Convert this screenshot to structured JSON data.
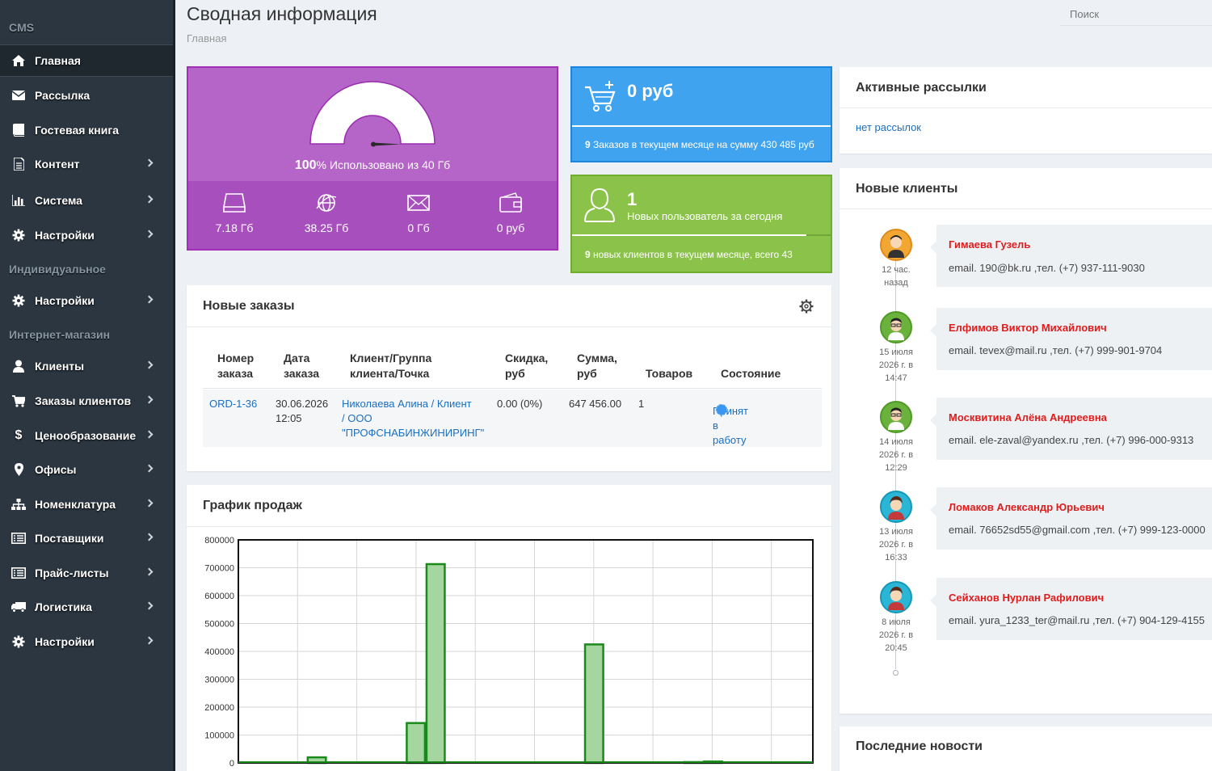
{
  "sidebar": {
    "sections": [
      "CMS",
      "Индивидуальное",
      "Интернет-магазин"
    ],
    "items": [
      {
        "label": "Главная",
        "icon": "home-icon",
        "active": true
      },
      {
        "label": "Рассылка",
        "icon": "envelope-icon"
      },
      {
        "label": "Гостевая книга",
        "icon": "book-icon"
      },
      {
        "label": "Контент",
        "icon": "document-icon"
      },
      {
        "label": "Система",
        "icon": "bar-chart-icon"
      },
      {
        "label": "Настройки",
        "icon": "gear-icon"
      },
      {
        "label": "Настройки",
        "icon": "gear-icon"
      },
      {
        "label": "Клиенты",
        "icon": "user-icon"
      },
      {
        "label": "Заказы клиентов",
        "icon": "cart-icon"
      },
      {
        "label": "Ценообразование",
        "icon": "dollar-icon"
      },
      {
        "label": "Офисы",
        "icon": "map-marker-icon"
      },
      {
        "label": "Номенклатура",
        "icon": "sitemap-icon"
      },
      {
        "label": "Поставщики",
        "icon": "list-icon"
      },
      {
        "label": "Прайс-листы",
        "icon": "list-icon"
      },
      {
        "label": "Логистика",
        "icon": "truck-icon"
      },
      {
        "label": "Настройки",
        "icon": "gear-icon"
      }
    ]
  },
  "header": {
    "title": "Сводная информация",
    "breadcrumb": "Главная",
    "search_placeholder": "Поиск"
  },
  "storage": {
    "percent": "100",
    "percent_sign": "%",
    "used_label": "Использовано из 40 Гб",
    "usage_fraction": 1.0,
    "stats": [
      {
        "icon": "hdd-icon",
        "value": "7.18 Гб"
      },
      {
        "icon": "globe-icon",
        "value": "38.25 Гб"
      },
      {
        "icon": "mail-icon",
        "value": "0 Гб"
      },
      {
        "icon": "wallet-icon",
        "value": "0 руб"
      }
    ]
  },
  "orders_card": {
    "amount": "0 руб",
    "footer_count": "9",
    "footer_text": " Заказов в текущем месяце на сумму 430 485 руб"
  },
  "users_card": {
    "count": "1",
    "label": "Новых пользователь за сегодня",
    "footer_count": "9",
    "footer_text": " новых клиентов в текущем месяце, всего 43"
  },
  "new_orders": {
    "title": "Новые заказы",
    "columns": [
      "Номер\nзаказа",
      "Дата\nзаказа",
      "Клиент/Группа\nклиента/Точка",
      "Скидка,\nруб",
      "Сумма,\nруб",
      "Товаров",
      "Состояние"
    ],
    "rows": [
      {
        "number": "ORD-1-36",
        "date": "30.06.2026\n12:05",
        "client": "Николаева Алина / Клиент\n/ ООО\n\"ПРОФСНАБИНЖИНИРИНГ\"",
        "discount": "0.00 (0%)",
        "sum": "647 456.00",
        "items": "1",
        "status": "Принят в работу"
      }
    ]
  },
  "sales_chart": {
    "title": "График продаж"
  },
  "chart_data": {
    "type": "bar",
    "title": "График продаж",
    "xlabel": "",
    "ylabel": "",
    "ylim": [
      0,
      800000
    ],
    "yticks": [
      0,
      100000,
      200000,
      300000,
      400000,
      500000,
      600000,
      700000,
      800000
    ],
    "grid": true,
    "bars": [
      {
        "x": 4.0,
        "value": 20000
      },
      {
        "x": 9.0,
        "value": 143000
      },
      {
        "x": 10.0,
        "value": 713000
      },
      {
        "x": 18.0,
        "value": 425000
      },
      {
        "x": 23.0,
        "value": 3000
      },
      {
        "x": 24.0,
        "value": 5000
      }
    ],
    "xmax": 29,
    "color": "#1a8a1a",
    "fill": "#a5d6a0"
  },
  "mailings": {
    "title": "Активные рассылки",
    "empty": "нет рассылок"
  },
  "new_clients": {
    "title": "Новые клиенты",
    "items": [
      {
        "name": "Гимаева Гузель",
        "contact": "email. 190@bk.ru ,тел. (+7) 937-111-9030",
        "ago": "12 час.\nназад",
        "avatar_color": "#f2a733"
      },
      {
        "name": "Елфимов Виктор Михайлович",
        "contact": "email. tevex@mail.ru ,тел. (+7) 999-901-9704",
        "ago": "15 июля\n2026 г. в\n14:47",
        "avatar_color": "#6ab23c"
      },
      {
        "name": "Москвитина Алёна Андреевна",
        "contact": "email. ele-zaval@yandex.ru ,тел. (+7) 996-000-9313",
        "ago": "14 июля\n2026 г. в\n12:29",
        "avatar_color": "#6ab23c"
      },
      {
        "name": "Ломаков Александр Юрьевич",
        "contact": "email. 76652sd55@gmail.com ,тел. (+7) 999-123-0000",
        "ago": "13 июля\n2026 г. в\n16:33",
        "avatar_color": "#2cb6d6"
      },
      {
        "name": "Сейханов Нурлан Рафилович",
        "contact": "email. yura_1233_ter@mail.ru ,тел. (+7) 904-129-4155",
        "ago": "8 июля\n2026 г. в\n20:45",
        "avatar_color": "#2cb6d6"
      }
    ]
  },
  "news": {
    "title": "Последние новости"
  }
}
